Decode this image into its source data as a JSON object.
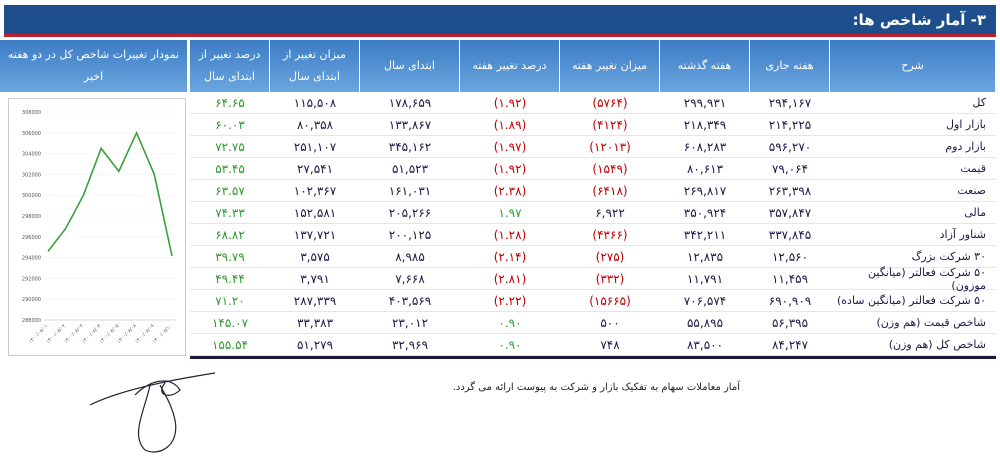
{
  "header": {
    "title": "۳- آمار شاخص ها:"
  },
  "table": {
    "columns": [
      "شرح",
      "هفته جاری",
      "هفته گذشته",
      "میزان تغییر هفته",
      "درصد تغییر هفته",
      "ابتدای سال",
      "میزان تغییر از ابتدای سال",
      "درصد تغییر از ابتدای سال",
      "نمودار تغییرات شاخص کل در دو هفته اخیر"
    ],
    "rows": [
      [
        "کل",
        "۲۹۴,۱۶۷",
        "۲۹۹,۹۳۱",
        "(۵۷۶۴)",
        "(۱.۹۲)",
        "۱۷۸,۶۵۹",
        "۱۱۵,۵۰۸",
        "۶۴.۶۵"
      ],
      [
        "بازار اول",
        "۲۱۴,۲۲۵",
        "۲۱۸,۳۴۹",
        "(۴۱۲۴)",
        "(۱.۸۹)",
        "۱۳۳,۸۶۷",
        "۸۰,۳۵۸",
        "۶۰.۰۳"
      ],
      [
        "بازار دوم",
        "۵۹۶,۲۷۰",
        "۶۰۸,۲۸۳",
        "(۱۲۰۱۳)",
        "(۱.۹۷)",
        "۳۴۵,۱۶۲",
        "۲۵۱,۱۰۷",
        "۷۲.۷۵"
      ],
      [
        "قیمت",
        "۷۹,۰۶۴",
        "۸۰,۶۱۳",
        "(۱۵۴۹)",
        "(۱.۹۲)",
        "۵۱,۵۲۳",
        "۲۷,۵۴۱",
        "۵۳.۴۵"
      ],
      [
        "صنعت",
        "۲۶۳,۳۹۸",
        "۲۶۹,۸۱۷",
        "(۶۴۱۸)",
        "(۲.۳۸)",
        "۱۶۱,۰۳۱",
        "۱۰۲,۳۶۷",
        "۶۳.۵۷"
      ],
      [
        "مالی",
        "۳۵۷,۸۴۷",
        "۳۵۰,۹۲۴",
        "۶,۹۲۲",
        "۱.۹۷",
        "۲۰۵,۲۶۶",
        "۱۵۲,۵۸۱",
        "۷۴.۳۳"
      ],
      [
        "شناور آزاد",
        "۳۳۷,۸۴۵",
        "۳۴۲,۲۱۱",
        "(۴۳۶۶)",
        "(۱.۲۸)",
        "۲۰۰,۱۲۵",
        "۱۳۷,۷۲۱",
        "۶۸.۸۲"
      ],
      [
        "۳۰ شرکت بزرگ",
        "۱۲,۵۶۰",
        "۱۲,۸۳۵",
        "(۲۷۵)",
        "(۲.۱۴)",
        "۸,۹۸۵",
        "۳,۵۷۵",
        "۳۹.۷۹"
      ],
      [
        "۵۰ شرکت فعالتر (میانگین موزون)",
        "۱۱,۴۵۹",
        "۱۱,۷۹۱",
        "(۳۳۲)",
        "(۲.۸۱)",
        "۷,۶۶۸",
        "۳,۷۹۱",
        "۴۹.۴۴"
      ],
      [
        "۵۰ شرکت فعالتر (میانگین ساده)",
        "۶۹۰,۹۰۹",
        "۷۰۶,۵۷۴",
        "(۱۵۶۶۵)",
        "(۲.۲۲)",
        "۴۰۳,۵۶۹",
        "۲۸۷,۳۳۹",
        "۷۱.۲۰"
      ],
      [
        "شاخص قیمت (هم وزن)",
        "۵۶,۳۹۵",
        "۵۵,۸۹۵",
        "۵۰۰",
        "۰.۹۰",
        "۲۳,۰۱۲",
        "۳۳,۳۸۳",
        "۱۴۵.۰۷"
      ],
      [
        "شاخص کل (هم وزن)",
        "۸۴,۲۴۷",
        "۸۳,۵۰۰",
        "۷۴۸",
        "۰.۹۰",
        "۳۲,۹۶۹",
        "۵۱,۲۷۹",
        "۱۵۵.۵۴"
      ]
    ]
  },
  "chart_data": {
    "type": "line",
    "categories": [
      "۱۴۰۰/۰۸/۰۱",
      "۱۴۰۰/۰۸/۰۲",
      "۱۴۰۰/۰۸/۰۳",
      "۱۴۰۰/۰۸/۰۴",
      "۱۴۰۰/۰۸/۰۵",
      "۱۴۰۰/۰۸/۰۸",
      "۱۴۰۰/۰۸/۰۹",
      "۱۴۰۰/۰۸/۱۰"
    ],
    "series": [
      {
        "color": "#3aa13a",
        "values": [
          294600,
          296800,
          300000,
          304500,
          302300,
          306000,
          302000,
          294167
        ]
      }
    ],
    "ylim": [
      288000,
      308000
    ],
    "yticks": [
      288000,
      290000,
      292000,
      294000,
      296000,
      298000,
      300000,
      302000,
      304000,
      306000,
      308000
    ]
  },
  "footnote": "آمار معاملات سهام به تفکیک بازار و شرکت به پیوست ارائه می گردد."
}
